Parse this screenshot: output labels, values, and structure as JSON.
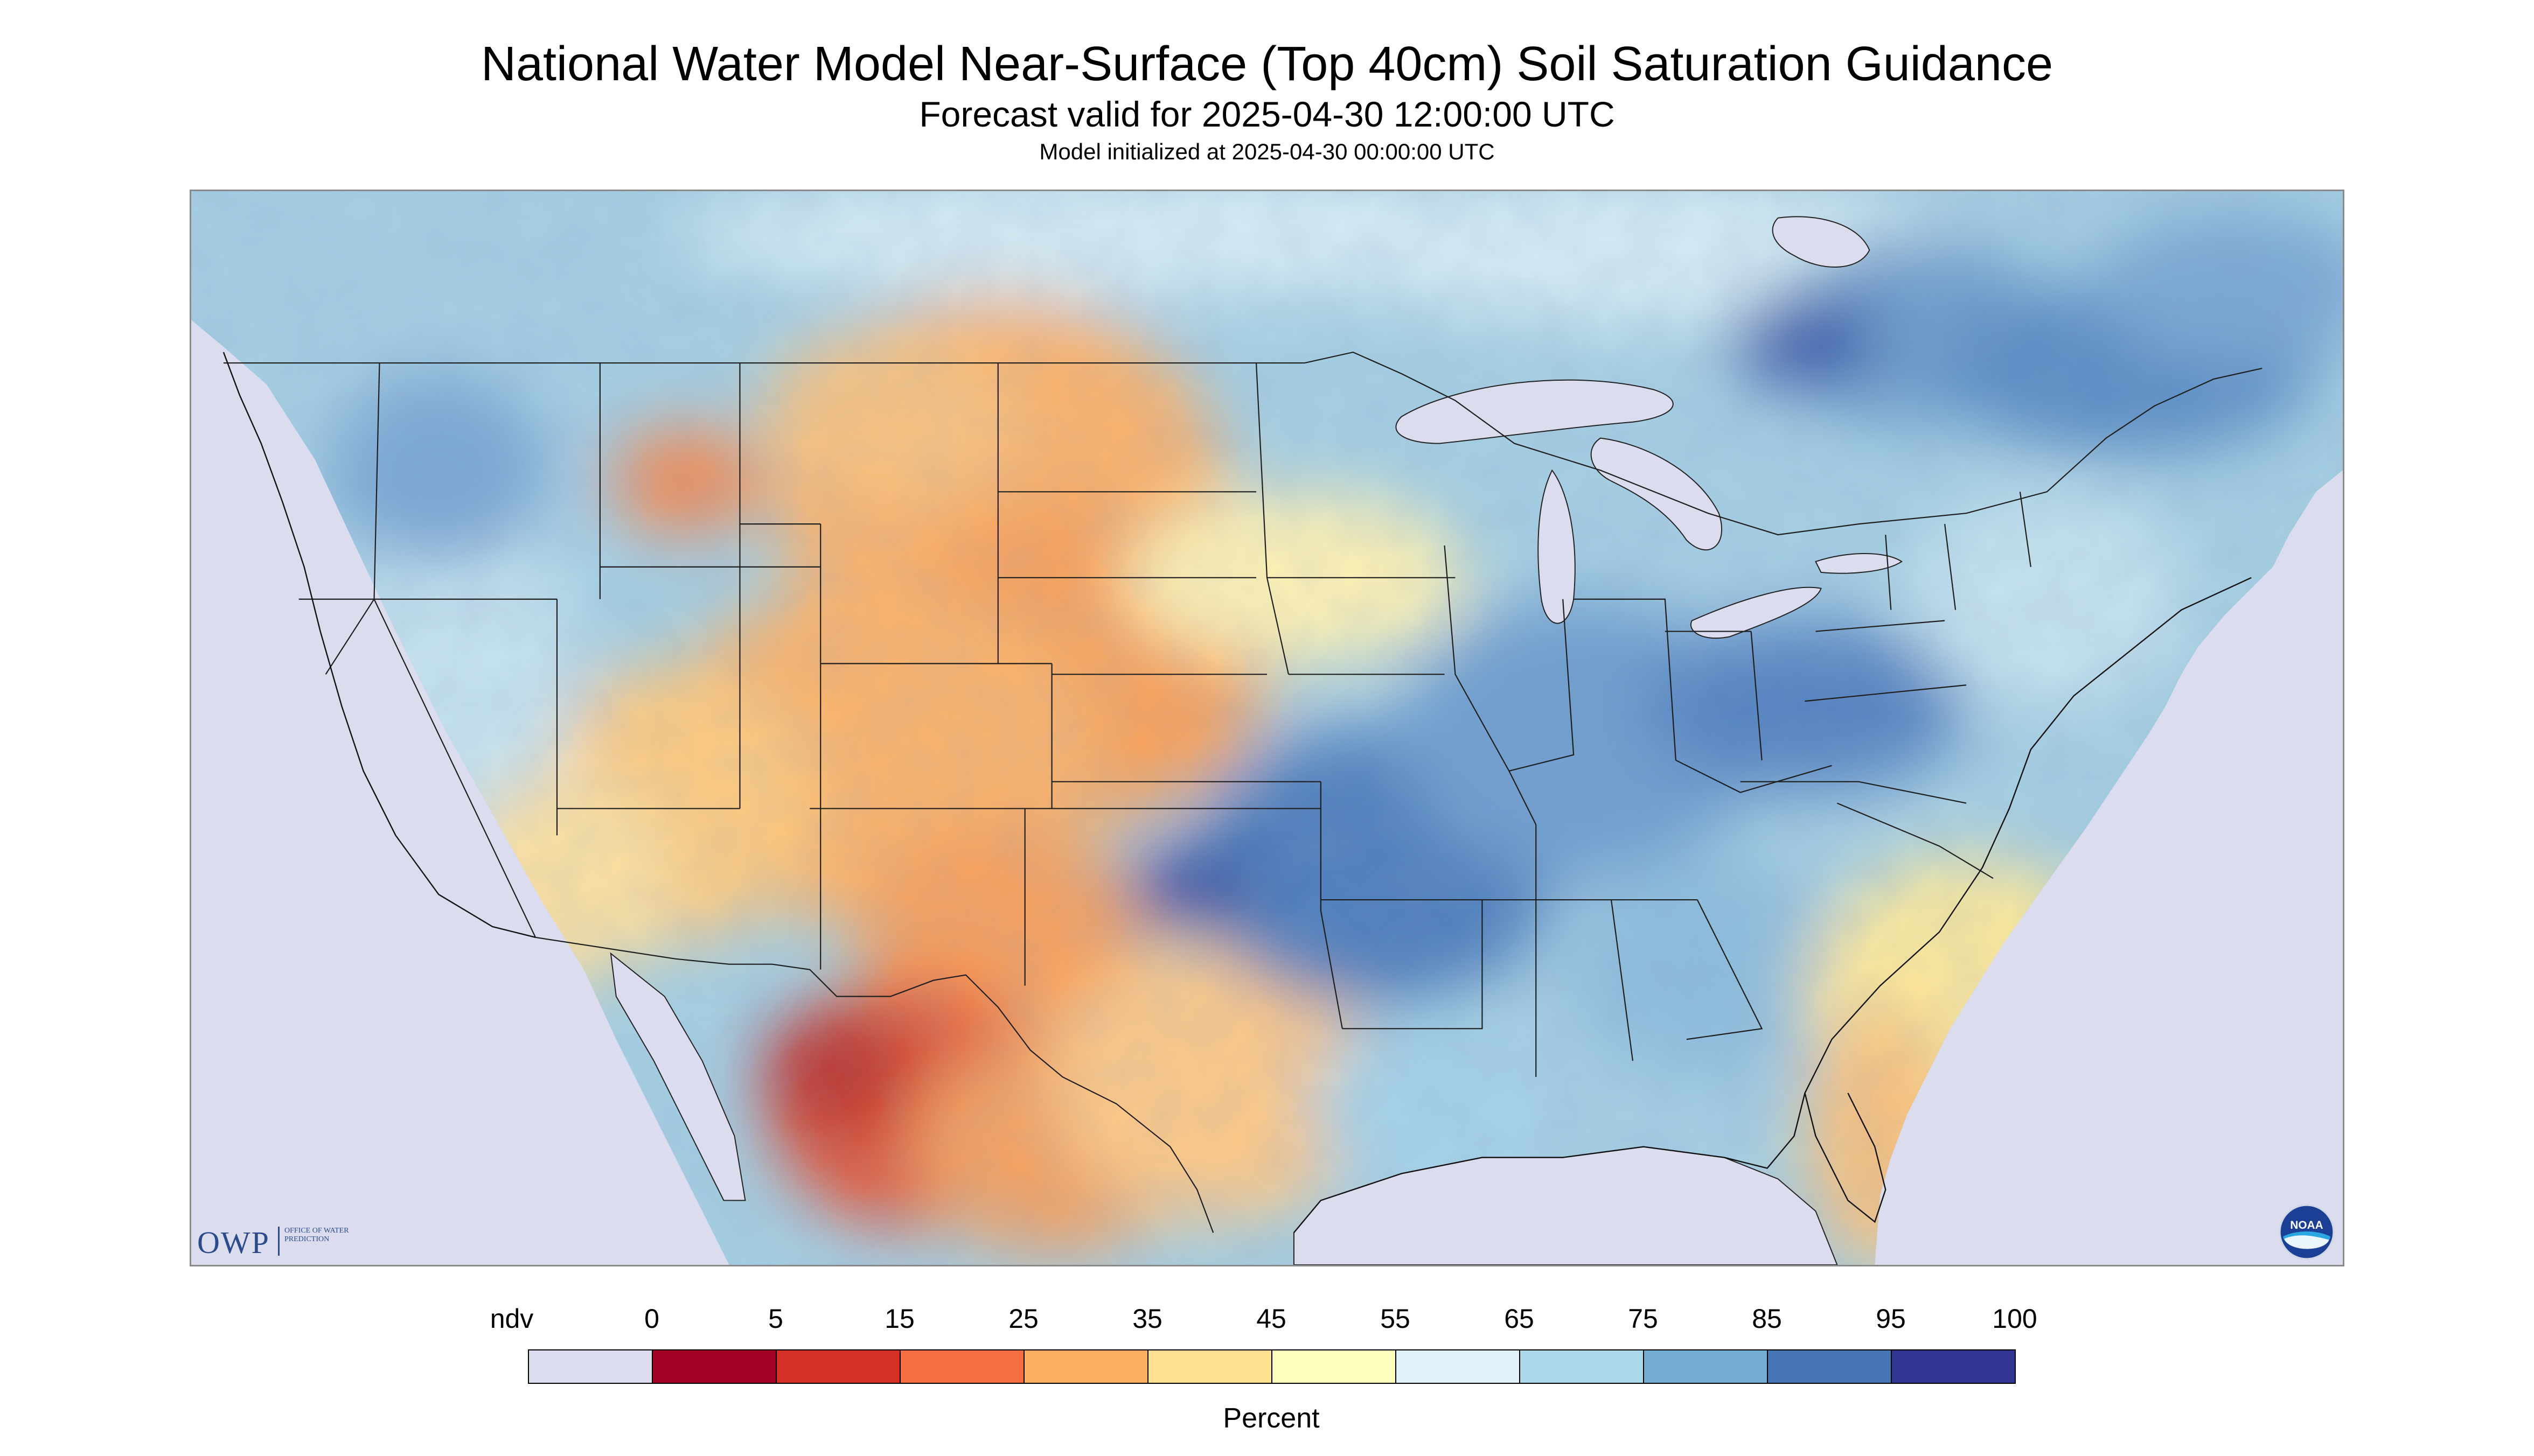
{
  "header": {
    "title": "National Water Model Near-Surface (Top 40cm) Soil Saturation Guidance",
    "forecast": "Forecast valid for 2025-04-30 12:00:00 UTC",
    "init": "Model initialized at 2025-04-30 00:00:00 UTC"
  },
  "logos": {
    "owp_text": "OWP",
    "owp_subtext": "Office of Water Prediction",
    "noaa_text": "NOAA"
  },
  "legend": {
    "ticks": [
      "ndv",
      "0",
      "5",
      "15",
      "25",
      "35",
      "45",
      "55",
      "65",
      "75",
      "85",
      "95",
      "100"
    ],
    "units": "Percent",
    "bins": [
      {
        "label": "ndv",
        "color": "#dcdcef"
      },
      {
        "label": "0-5",
        "color": "#a50026"
      },
      {
        "label": "5-15",
        "color": "#d73027"
      },
      {
        "label": "15-25",
        "color": "#f46d43"
      },
      {
        "label": "25-35",
        "color": "#fdae61"
      },
      {
        "label": "35-45",
        "color": "#fee090"
      },
      {
        "label": "45-55",
        "color": "#ffffbf"
      },
      {
        "label": "55-65",
        "color": "#e0f3f8"
      },
      {
        "label": "65-75",
        "color": "#abd9e9"
      },
      {
        "label": "75-85",
        "color": "#74add1"
      },
      {
        "label": "85-95",
        "color": "#4575b4"
      },
      {
        "label": "95-100",
        "color": "#313695"
      }
    ]
  }
}
